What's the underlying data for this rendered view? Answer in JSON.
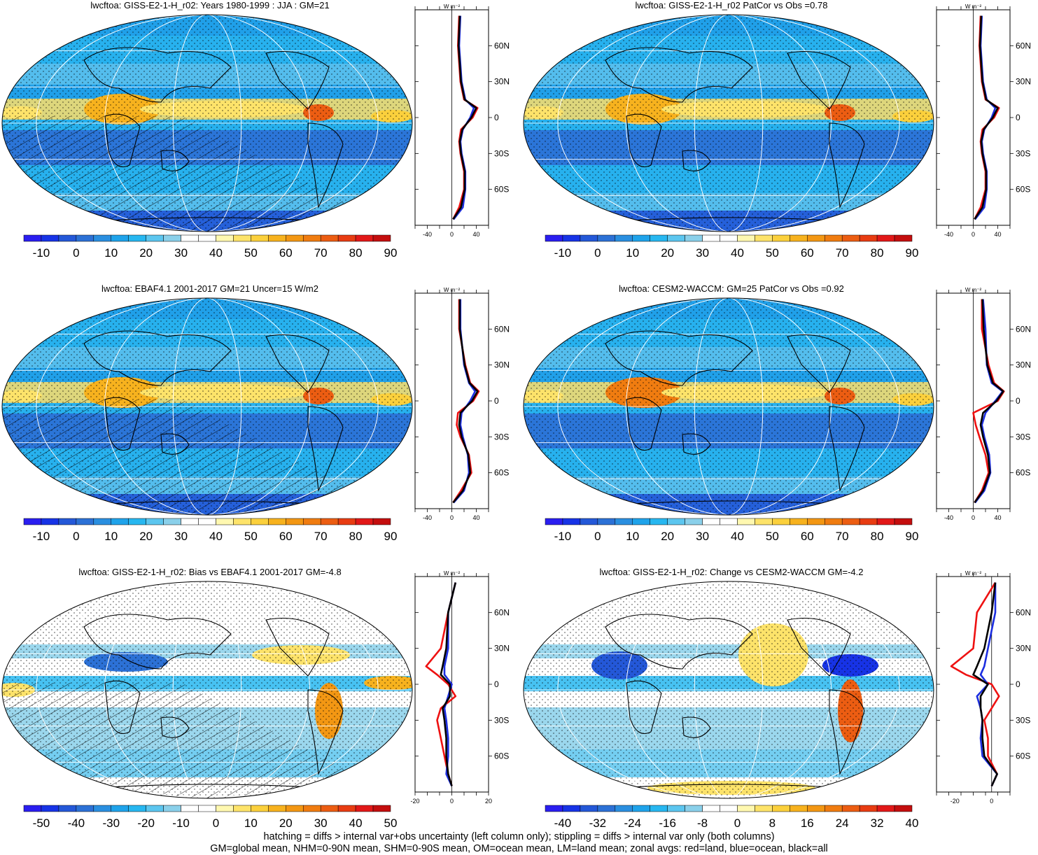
{
  "footer": {
    "line1": "hatching = diffs > internal var+obs uncertainty (left column only); stippling = diffs > internal var only (both columns)",
    "line2": "GM=global mean, NHM=0-90N mean, SHM=0-90S mean, OM=ocean mean, LM=land mean; zonal avgs: red=land, blue=ocean, black=all"
  },
  "zonal_units": "W m⁻²",
  "lat_ticks": [
    "60N",
    "30N",
    "0",
    "30S",
    "60S"
  ],
  "colors": {
    "land": "#ee1111",
    "ocean": "#1c2ee0",
    "all": "#000000",
    "grid": "#ffffff",
    "coast": "#000000"
  },
  "chart_data": [
    {
      "type": "heatmap",
      "panel": "top-left",
      "title": "lwcftoa: GISS-E2-1-H_r02: Years 1980-1999 : JJA : GM=21",
      "colorbar": {
        "labels": [
          "-10",
          "0",
          "10",
          "20",
          "30",
          "40",
          "50",
          "60",
          "70",
          "80",
          "90"
        ],
        "range": [
          -15,
          95
        ]
      },
      "overlay": {
        "hatching": true,
        "stippling": true
      },
      "zonal": {
        "xticks": [
          "-40",
          "0",
          "40"
        ],
        "xlim": [
          -60,
          60
        ],
        "lat": [
          85,
          60,
          30,
          15,
          8,
          0,
          -10,
          -20,
          -30,
          -45,
          -60,
          -75,
          -85
        ],
        "land": [
          12,
          10,
          14,
          20,
          42,
          34,
          15,
          12,
          14,
          20,
          20,
          12,
          2
        ],
        "ocean": [
          14,
          12,
          16,
          22,
          36,
          30,
          18,
          14,
          16,
          22,
          22,
          18,
          3
        ],
        "all": [
          13,
          11,
          15,
          21,
          40,
          32,
          17,
          13,
          15,
          21,
          21,
          15,
          2
        ]
      }
    },
    {
      "type": "heatmap",
      "panel": "top-right",
      "title": "lwcftoa: GISS-E2-1-H_r02 PatCor vs Obs =0.78",
      "colorbar": {
        "labels": [
          "-10",
          "0",
          "10",
          "20",
          "30",
          "40",
          "50",
          "60",
          "70",
          "80",
          "90"
        ],
        "range": [
          -15,
          95
        ]
      },
      "overlay": {
        "hatching": false,
        "stippling": true
      },
      "zonal": {
        "xticks": [
          "-40",
          "0",
          "40"
        ],
        "xlim": [
          -60,
          60
        ],
        "lat": [
          85,
          60,
          30,
          15,
          8,
          0,
          -10,
          -20,
          -30,
          -45,
          -60,
          -75,
          -85
        ],
        "land": [
          12,
          10,
          14,
          20,
          42,
          34,
          15,
          12,
          14,
          20,
          20,
          12,
          2
        ],
        "ocean": [
          14,
          12,
          16,
          22,
          36,
          30,
          18,
          14,
          16,
          22,
          22,
          18,
          3
        ],
        "all": [
          13,
          11,
          15,
          21,
          40,
          32,
          17,
          13,
          15,
          21,
          21,
          15,
          2
        ]
      }
    },
    {
      "type": "heatmap",
      "panel": "middle-left",
      "title": "lwcftoa: EBAF4.1 2001-2017 GM=21 Uncer=15 W/m2",
      "colorbar": {
        "labels": [
          "-10",
          "0",
          "10",
          "20",
          "30",
          "40",
          "50",
          "60",
          "70",
          "80",
          "90"
        ],
        "range": [
          -15,
          95
        ]
      },
      "overlay": {
        "hatching": true,
        "stippling": true
      },
      "zonal": {
        "xticks": [
          "-40",
          "0",
          "40"
        ],
        "xlim": [
          -60,
          60
        ],
        "lat": [
          85,
          60,
          30,
          15,
          8,
          0,
          -10,
          -20,
          -30,
          -45,
          -60,
          -75,
          -85
        ],
        "land": [
          12,
          12,
          22,
          30,
          44,
          35,
          10,
          8,
          14,
          28,
          32,
          15,
          2
        ],
        "ocean": [
          14,
          14,
          20,
          28,
          38,
          30,
          16,
          14,
          18,
          26,
          28,
          20,
          3
        ],
        "all": [
          13,
          13,
          21,
          29,
          42,
          33,
          14,
          12,
          16,
          27,
          30,
          18,
          2
        ]
      }
    },
    {
      "type": "heatmap",
      "panel": "middle-right",
      "title": "lwcftoa: CESM2-WACCM: GM=25 PatCor vs Obs =0.92",
      "colorbar": {
        "labels": [
          "-10",
          "0",
          "10",
          "20",
          "30",
          "40",
          "50",
          "60",
          "70",
          "80",
          "90"
        ],
        "range": [
          -15,
          95
        ]
      },
      "overlay": {
        "hatching": false,
        "stippling": true
      },
      "zonal": {
        "xticks": [
          "-40",
          "0",
          "40"
        ],
        "xlim": [
          -60,
          60
        ],
        "lat": [
          85,
          60,
          30,
          15,
          8,
          0,
          -10,
          -20,
          -30,
          -45,
          -60,
          -75,
          -85
        ],
        "land": [
          14,
          14,
          25,
          34,
          50,
          40,
          0,
          4,
          10,
          20,
          25,
          14,
          2
        ],
        "ocean": [
          16,
          20,
          22,
          30,
          48,
          36,
          20,
          14,
          18,
          26,
          28,
          18,
          3
        ],
        "all": [
          15,
          17,
          23,
          32,
          49,
          38,
          16,
          12,
          16,
          24,
          27,
          16,
          2
        ]
      }
    },
    {
      "type": "heatmap",
      "panel": "bottom-left",
      "title": "lwcftoa: GISS-E2-1-H_r02: Bias vs EBAF4.1 2001-2017 GM=-4.8",
      "colorbar": {
        "labels": [
          "-50",
          "-40",
          "-30",
          "-20",
          "-10",
          "0",
          "10",
          "20",
          "30",
          "40",
          "50"
        ],
        "range": [
          -55,
          55
        ]
      },
      "overlay": {
        "hatching": true,
        "stippling": true
      },
      "zonal": {
        "xticks": [
          "-20",
          "0",
          "20"
        ],
        "xlim": [
          -20,
          20
        ],
        "lat": [
          85,
          60,
          30,
          15,
          8,
          0,
          -10,
          -20,
          -30,
          -45,
          -60,
          -75,
          -85
        ],
        "land": [
          2,
          -2,
          -6,
          -14,
          -8,
          -2,
          2,
          -6,
          -8,
          -6,
          -4,
          -2,
          0
        ],
        "ocean": [
          2,
          -2,
          -2,
          -4,
          -4,
          0,
          -2,
          -4,
          -3,
          -2,
          -2,
          -3,
          0
        ],
        "all": [
          2,
          -2,
          -3,
          -5,
          -6,
          -1,
          -1,
          -5,
          -4,
          -3,
          -3,
          -2,
          0
        ]
      }
    },
    {
      "type": "heatmap",
      "panel": "bottom-right",
      "title": "lwcftoa: GISS-E2-1-H_r02: Change vs CESM2-WACCM GM=-4.2",
      "colorbar": {
        "labels": [
          "-40",
          "-32",
          "-24",
          "-16",
          "-8",
          "0",
          "8",
          "16",
          "24",
          "32",
          "40"
        ],
        "range": [
          -44,
          44
        ]
      },
      "overlay": {
        "hatching": false,
        "stippling": true
      },
      "zonal": {
        "xticks": [
          "-20",
          "0"
        ],
        "xlim": [
          -30,
          10
        ],
        "lat": [
          85,
          60,
          30,
          15,
          8,
          0,
          -10,
          -20,
          -30,
          -45,
          -60,
          -75,
          -85
        ],
        "land": [
          2,
          -8,
          -10,
          -22,
          -14,
          0,
          4,
          0,
          -4,
          -2,
          -2,
          3,
          0
        ],
        "ocean": [
          2,
          2,
          -2,
          -4,
          -6,
          -2,
          -8,
          -6,
          -5,
          -6,
          -5,
          3,
          0
        ],
        "all": [
          2,
          0,
          -4,
          -8,
          -10,
          -2,
          -6,
          -6,
          -5,
          -5,
          -4,
          3,
          0
        ]
      }
    }
  ]
}
